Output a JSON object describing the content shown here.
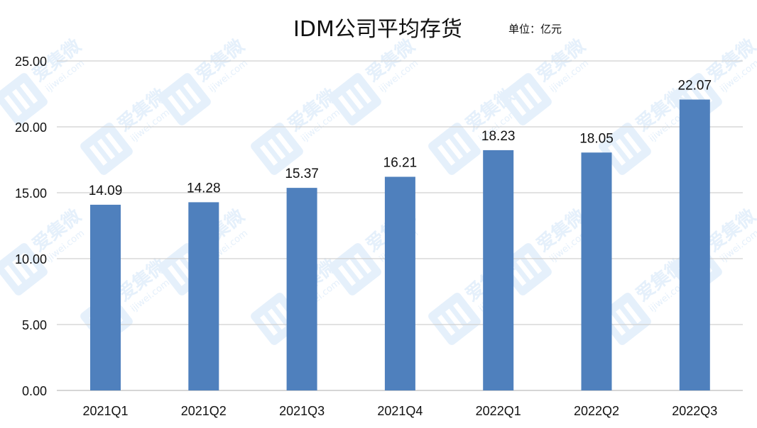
{
  "header": {
    "title": "IDM公司平均存货",
    "unit": "单位：亿元"
  },
  "watermark": {
    "brand": "爱集微",
    "site": "ijiwei.com"
  },
  "colors": {
    "bar": "#4f80bd",
    "grid": "#d0d0d0",
    "axis": "#bdbdbd"
  },
  "chart_data": {
    "type": "bar",
    "categories": [
      "2021Q1",
      "2021Q2",
      "2021Q3",
      "2021Q4",
      "2022Q1",
      "2022Q2",
      "2022Q3"
    ],
    "values": [
      14.09,
      14.28,
      15.37,
      16.21,
      18.23,
      18.05,
      22.07
    ],
    "value_labels": [
      "14.09",
      "14.28",
      "15.37",
      "16.21",
      "18.23",
      "18.05",
      "22.07"
    ],
    "yticks": [
      "0.00",
      "5.00",
      "10.00",
      "15.00",
      "20.00",
      "25.00"
    ],
    "ytick_values": [
      0,
      5,
      10,
      15,
      20,
      25
    ],
    "ylim": [
      0,
      25
    ],
    "grid": true,
    "legend": "none"
  }
}
